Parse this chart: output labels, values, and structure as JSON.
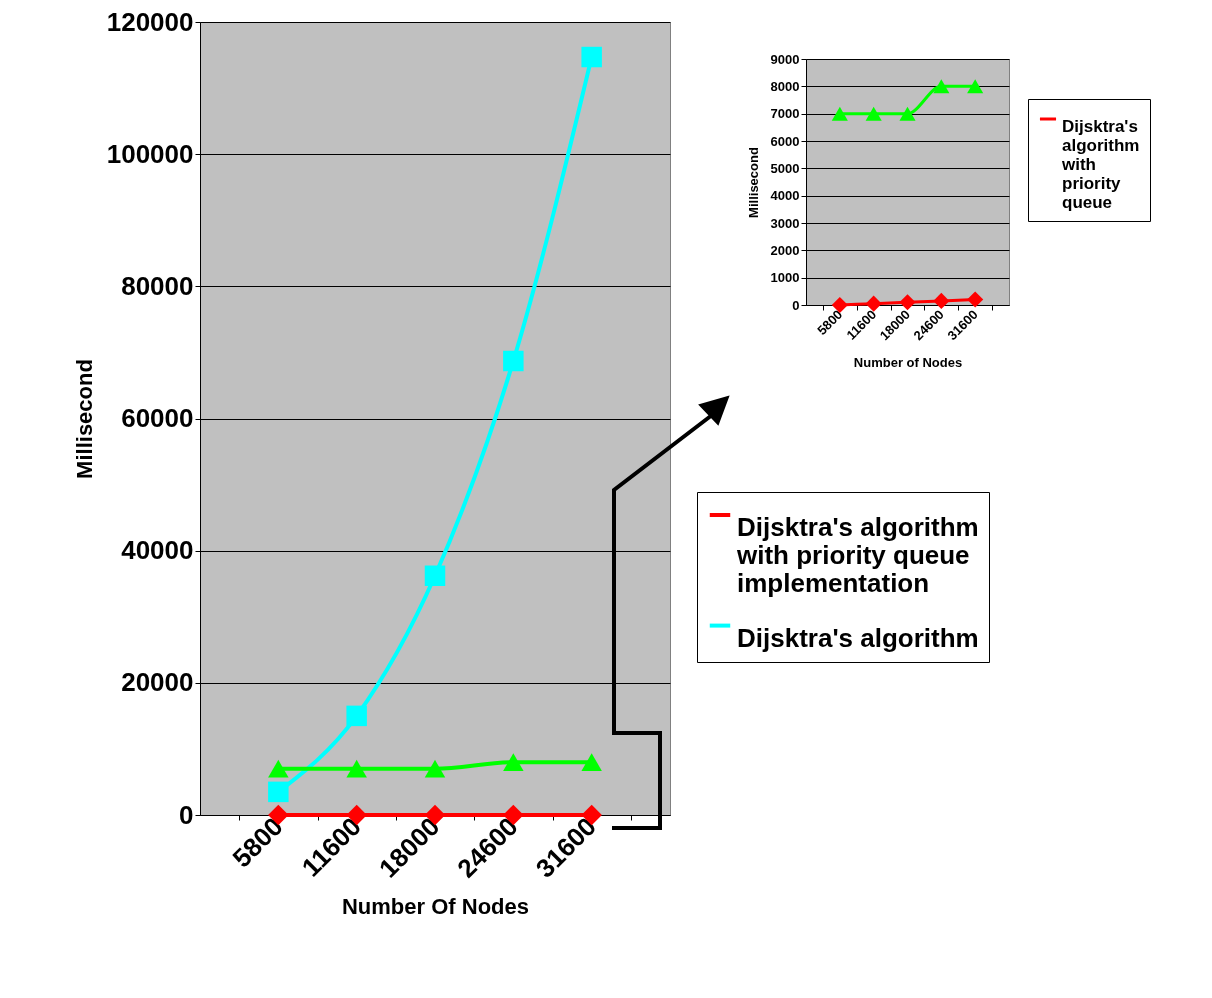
{
  "chart_data": [
    {
      "type": "line",
      "xlabel": "Number Of Nodes",
      "ylabel": "Millisecond",
      "categories": [
        "5800",
        "11600",
        "18000",
        "24600",
        "31600"
      ],
      "ylim": [
        0,
        120000
      ],
      "yticks": [
        0,
        20000,
        40000,
        60000,
        80000,
        100000,
        120000
      ],
      "grid": "y",
      "legend": "right",
      "series": [
        {
          "name": "Dijsktra's algorithm with priority queue implementation",
          "color": "#ff0000",
          "marker": "diamond",
          "values": [
            0,
            0,
            0,
            0,
            0
          ]
        },
        {
          "name": "Dijsktra's algorithm",
          "color": "#00ffff",
          "marker": "square",
          "values": [
            3500,
            15000,
            36200,
            68700,
            114700
          ]
        },
        {
          "color": "#00ff00",
          "marker": "triangle",
          "values": [
            7000,
            7000,
            7000,
            8000,
            8000
          ]
        }
      ]
    },
    {
      "type": "line",
      "xlabel": "Number of Nodes",
      "ylabel": "Millisecond",
      "categories": [
        "5800",
        "11600",
        "18000",
        "24600",
        "31600"
      ],
      "ylim": [
        0,
        9000
      ],
      "yticks": [
        0,
        1000,
        2000,
        3000,
        4000,
        5000,
        6000,
        7000,
        8000,
        9000
      ],
      "grid": "y",
      "legend": "right",
      "series": [
        {
          "name": "Dijsktra's algorithm with priority queue",
          "color": "#ff0000",
          "marker": "diamond",
          "values": [
            0,
            50,
            100,
            150,
            200
          ]
        },
        {
          "color": "#00ff00",
          "marker": "triangle",
          "values": [
            7000,
            7000,
            7000,
            8000,
            8000
          ]
        }
      ]
    }
  ]
}
